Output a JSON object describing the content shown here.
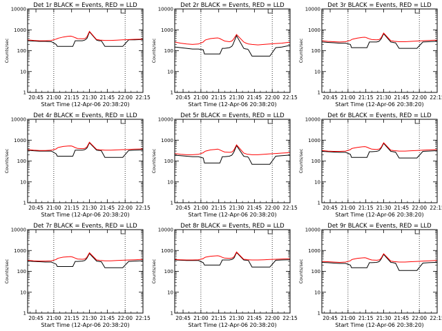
{
  "ylabel": "Counts/sec",
  "xlabel": "Start Time (12-Apr-06 20:38:20)",
  "x_ticks": [
    "20:45",
    "21:00",
    "21:15",
    "21:30",
    "21:45",
    "22:00",
    "22:15"
  ],
  "y_ticks": [
    "1",
    "10",
    "100",
    "1000",
    "10000"
  ],
  "colors": {
    "events": "#000000",
    "lld": "#ff0000"
  },
  "chart_data": [
    {
      "type": "line",
      "title": "Det 1r BLACK = Events, RED = LLD",
      "x_minutes": [
        0,
        5,
        10,
        15,
        20,
        24,
        25,
        26,
        30,
        34,
        36,
        37,
        38,
        40,
        42,
        46,
        48,
        49,
        50,
        52,
        58,
        60,
        61,
        62,
        65,
        70,
        75,
        80,
        85,
        90,
        95,
        97
      ],
      "series": [
        {
          "name": "Events",
          "values": [
            300,
            290,
            280,
            280,
            270,
            200,
            160,
            160,
            160,
            160,
            160,
            160,
            160,
            300,
            300,
            300,
            320,
            350,
            400,
            800,
            320,
            300,
            300,
            300,
            160,
            160,
            160,
            160,
            330,
            330,
            340,
            340
          ]
        },
        {
          "name": "LLD",
          "values": [
            330,
            310,
            300,
            300,
            310,
            360,
            380,
            400,
            450,
            490,
            500,
            490,
            470,
            420,
            380,
            370,
            380,
            410,
            480,
            850,
            340,
            330,
            320,
            320,
            310,
            310,
            320,
            330,
            340,
            350,
            360,
            360
          ]
        }
      ],
      "xlim": [
        0,
        97
      ],
      "ylim": [
        1,
        10000
      ],
      "yscale": "log"
    },
    {
      "type": "line",
      "title": "Det 2r BLACK = Events, RED = LLD",
      "x_minutes": [
        0,
        5,
        10,
        15,
        20,
        24,
        25,
        26,
        30,
        34,
        36,
        37,
        38,
        40,
        42,
        46,
        48,
        49,
        50,
        52,
        58,
        60,
        61,
        62,
        65,
        70,
        75,
        80,
        85,
        90,
        95,
        97
      ],
      "series": [
        {
          "name": "Events",
          "values": [
            150,
            140,
            130,
            120,
            120,
            110,
            70,
            70,
            70,
            70,
            70,
            70,
            70,
            130,
            130,
            140,
            160,
            200,
            280,
            520,
            130,
            120,
            120,
            110,
            55,
            55,
            55,
            55,
            140,
            150,
            170,
            170
          ]
        },
        {
          "name": "LLD",
          "values": [
            260,
            230,
            210,
            200,
            210,
            260,
            300,
            330,
            380,
            400,
            410,
            400,
            380,
            330,
            290,
            270,
            290,
            330,
            400,
            600,
            260,
            230,
            220,
            210,
            200,
            190,
            200,
            210,
            220,
            230,
            250,
            250
          ]
        }
      ],
      "xlim": [
        0,
        97
      ],
      "ylim": [
        1,
        10000
      ],
      "yscale": "log"
    },
    {
      "type": "line",
      "title": "Det 3r BLACK = Events, RED = LLD",
      "x_minutes": [
        0,
        5,
        10,
        15,
        20,
        24,
        25,
        26,
        30,
        34,
        36,
        37,
        38,
        40,
        42,
        46,
        48,
        49,
        50,
        52,
        58,
        60,
        61,
        62,
        65,
        70,
        75,
        80,
        85,
        90,
        95,
        97
      ],
      "series": [
        {
          "name": "Events",
          "values": [
            260,
            250,
            240,
            230,
            230,
            200,
            140,
            140,
            140,
            140,
            140,
            140,
            140,
            260,
            260,
            260,
            280,
            320,
            380,
            650,
            260,
            250,
            240,
            240,
            130,
            130,
            130,
            130,
            260,
            270,
            280,
            280
          ]
        },
        {
          "name": "LLD",
          "values": [
            300,
            280,
            270,
            260,
            270,
            310,
            340,
            360,
            400,
            430,
            440,
            430,
            410,
            370,
            340,
            330,
            340,
            370,
            430,
            700,
            300,
            290,
            280,
            280,
            270,
            270,
            280,
            290,
            300,
            310,
            320,
            320
          ]
        }
      ],
      "xlim": [
        0,
        97
      ],
      "ylim": [
        1,
        10000
      ],
      "yscale": "log"
    },
    {
      "type": "line",
      "title": "Det 4r BLACK = Events, RED = LLD",
      "x_minutes": [
        0,
        5,
        10,
        15,
        20,
        24,
        25,
        26,
        30,
        34,
        36,
        37,
        38,
        40,
        42,
        46,
        48,
        49,
        50,
        52,
        58,
        60,
        61,
        62,
        65,
        70,
        75,
        80,
        85,
        90,
        95,
        97
      ],
      "series": [
        {
          "name": "Events",
          "values": [
            330,
            310,
            300,
            300,
            300,
            220,
            170,
            170,
            170,
            170,
            170,
            170,
            170,
            330,
            330,
            330,
            350,
            380,
            430,
            750,
            330,
            320,
            320,
            310,
            150,
            150,
            150,
            150,
            320,
            330,
            340,
            340
          ]
        },
        {
          "name": "LLD",
          "values": [
            350,
            330,
            320,
            320,
            330,
            380,
            420,
            450,
            500,
            520,
            530,
            520,
            500,
            440,
            400,
            390,
            400,
            430,
            490,
            800,
            360,
            350,
            340,
            340,
            330,
            330,
            340,
            350,
            360,
            370,
            380,
            380
          ]
        }
      ],
      "xlim": [
        0,
        97
      ],
      "ylim": [
        1,
        10000
      ],
      "yscale": "log"
    },
    {
      "type": "line",
      "title": "Det 5r BLACK = Events, RED = LLD",
      "x_minutes": [
        0,
        5,
        10,
        15,
        20,
        24,
        25,
        26,
        30,
        34,
        36,
        37,
        38,
        40,
        42,
        46,
        48,
        49,
        50,
        52,
        58,
        60,
        61,
        62,
        65,
        70,
        75,
        80,
        85,
        90,
        95,
        97
      ],
      "series": [
        {
          "name": "Events",
          "values": [
            190,
            180,
            170,
            160,
            160,
            140,
            80,
            80,
            80,
            80,
            80,
            80,
            80,
            160,
            160,
            170,
            190,
            230,
            290,
            550,
            170,
            160,
            160,
            150,
            70,
            70,
            70,
            70,
            170,
            180,
            190,
            190
          ]
        },
        {
          "name": "LLD",
          "values": [
            230,
            210,
            200,
            200,
            210,
            250,
            280,
            300,
            340,
            360,
            370,
            360,
            340,
            300,
            270,
            260,
            270,
            300,
            360,
            600,
            240,
            220,
            210,
            210,
            200,
            200,
            210,
            220,
            230,
            240,
            250,
            250
          ]
        }
      ],
      "xlim": [
        0,
        97
      ],
      "ylim": [
        1,
        10000
      ],
      "yscale": "log"
    },
    {
      "type": "line",
      "title": "Det 6r BLACK = Events, RED = LLD",
      "x_minutes": [
        0,
        5,
        10,
        15,
        20,
        24,
        25,
        26,
        30,
        34,
        36,
        37,
        38,
        40,
        42,
        46,
        48,
        49,
        50,
        52,
        58,
        60,
        61,
        62,
        65,
        70,
        75,
        80,
        85,
        90,
        95,
        97
      ],
      "series": [
        {
          "name": "Events",
          "values": [
            290,
            280,
            270,
            260,
            260,
            210,
            150,
            150,
            150,
            150,
            150,
            150,
            150,
            280,
            280,
            290,
            310,
            360,
            430,
            700,
            290,
            280,
            270,
            270,
            140,
            140,
            140,
            140,
            290,
            300,
            310,
            310
          ]
        },
        {
          "name": "LLD",
          "values": [
            320,
            300,
            290,
            290,
            300,
            350,
            390,
            410,
            450,
            480,
            490,
            480,
            460,
            410,
            370,
            360,
            370,
            400,
            470,
            750,
            330,
            320,
            310,
            310,
            300,
            300,
            310,
            320,
            330,
            340,
            350,
            350
          ]
        }
      ],
      "xlim": [
        0,
        97
      ],
      "ylim": [
        1,
        10000
      ],
      "yscale": "log"
    },
    {
      "type": "line",
      "title": "Det 7r BLACK = Events, RED = LLD",
      "x_minutes": [
        0,
        5,
        10,
        15,
        20,
        24,
        25,
        26,
        30,
        34,
        36,
        37,
        38,
        40,
        42,
        46,
        48,
        49,
        50,
        52,
        58,
        60,
        61,
        62,
        65,
        70,
        75,
        80,
        85,
        90,
        95,
        97
      ],
      "series": [
        {
          "name": "Events",
          "values": [
            310,
            300,
            290,
            280,
            280,
            220,
            170,
            170,
            170,
            170,
            170,
            170,
            170,
            300,
            300,
            310,
            330,
            370,
            440,
            720,
            310,
            300,
            290,
            290,
            150,
            150,
            150,
            150,
            300,
            310,
            320,
            320
          ]
        },
        {
          "name": "LLD",
          "values": [
            340,
            320,
            310,
            310,
            320,
            370,
            410,
            430,
            480,
            500,
            510,
            500,
            480,
            430,
            390,
            380,
            390,
            420,
            490,
            780,
            350,
            340,
            330,
            330,
            320,
            320,
            330,
            340,
            350,
            360,
            370,
            370
          ]
        }
      ],
      "xlim": [
        0,
        97
      ],
      "ylim": [
        1,
        10000
      ],
      "yscale": "log"
    },
    {
      "type": "line",
      "title": "Det 8r BLACK = Events, RED = LLD",
      "x_minutes": [
        0,
        5,
        10,
        15,
        20,
        24,
        25,
        26,
        30,
        34,
        36,
        37,
        38,
        40,
        42,
        46,
        48,
        49,
        50,
        52,
        58,
        60,
        61,
        62,
        65,
        70,
        75,
        80,
        85,
        90,
        95,
        97
      ],
      "series": [
        {
          "name": "Events",
          "values": [
            350,
            340,
            330,
            330,
            330,
            260,
            200,
            200,
            200,
            200,
            200,
            200,
            200,
            350,
            350,
            350,
            370,
            400,
            450,
            800,
            350,
            340,
            340,
            330,
            160,
            160,
            160,
            160,
            340,
            350,
            360,
            360
          ]
        },
        {
          "name": "LLD",
          "values": [
            370,
            360,
            350,
            350,
            360,
            410,
            450,
            480,
            530,
            550,
            560,
            550,
            530,
            470,
            430,
            420,
            430,
            460,
            520,
            850,
            380,
            370,
            360,
            360,
            350,
            350,
            360,
            370,
            380,
            390,
            400,
            400
          ]
        }
      ],
      "xlim": [
        0,
        97
      ],
      "ylim": [
        1,
        10000
      ],
      "yscale": "log"
    },
    {
      "type": "line",
      "title": "Det 9r BLACK = Events, RED = LLD",
      "x_minutes": [
        0,
        5,
        10,
        15,
        20,
        24,
        25,
        26,
        30,
        34,
        36,
        37,
        38,
        40,
        42,
        46,
        48,
        49,
        50,
        52,
        58,
        60,
        61,
        62,
        65,
        70,
        75,
        80,
        85,
        90,
        95,
        97
      ],
      "series": [
        {
          "name": "Events",
          "values": [
            270,
            260,
            250,
            240,
            240,
            200,
            150,
            150,
            150,
            150,
            150,
            150,
            150,
            260,
            260,
            270,
            290,
            330,
            400,
            650,
            270,
            260,
            250,
            250,
            110,
            110,
            110,
            110,
            250,
            260,
            270,
            270
          ]
        },
        {
          "name": "LLD",
          "values": [
            300,
            290,
            280,
            270,
            280,
            320,
            360,
            380,
            420,
            440,
            450,
            440,
            420,
            380,
            350,
            340,
            350,
            380,
            440,
            700,
            310,
            300,
            290,
            290,
            280,
            280,
            290,
            300,
            310,
            320,
            330,
            330
          ]
        }
      ],
      "xlim": [
        0,
        97
      ],
      "ylim": [
        1,
        10000
      ],
      "yscale": "log"
    }
  ]
}
